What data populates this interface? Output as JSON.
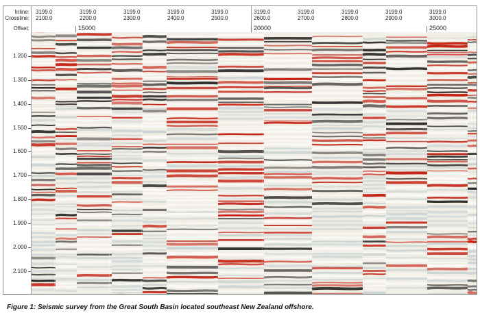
{
  "header": {
    "inline_label": "Inline:",
    "crossline_label": "Crossline:",
    "offset_label": "Offset:",
    "columns": [
      {
        "inline": "3199.0",
        "crossline": "2100.0"
      },
      {
        "inline": "3199.0",
        "crossline": "2200.0"
      },
      {
        "inline": "3199.0",
        "crossline": "2300.0"
      },
      {
        "inline": "3199.0",
        "crossline": "2400.0"
      },
      {
        "inline": "3199.0",
        "crossline": "2500.0"
      },
      {
        "inline": "3199.0",
        "crossline": "2600.0"
      },
      {
        "inline": "3199.0",
        "crossline": "2700.0"
      },
      {
        "inline": "3199.0",
        "crossline": "2800.0"
      },
      {
        "inline": "3199.0",
        "crossline": "2900.0"
      },
      {
        "inline": "3199.0",
        "crossline": "3000.0"
      }
    ],
    "offsets": [
      "15000",
      "20000",
      "25000"
    ]
  },
  "time_axis": {
    "labels": [
      "1.200",
      "1.300",
      "1.400",
      "1.500",
      "1.600",
      "1.700",
      "1.800",
      "1.900",
      "2.000",
      "2.100"
    ]
  },
  "colors": {
    "positive": "#c21a0c",
    "negative": "#141414",
    "background": "#f1eee6",
    "trough_tint": "#b7c7cc"
  },
  "caption": "Figure 1: Seismic survey from the Great South Basin located southeast New Zealand offshore."
}
